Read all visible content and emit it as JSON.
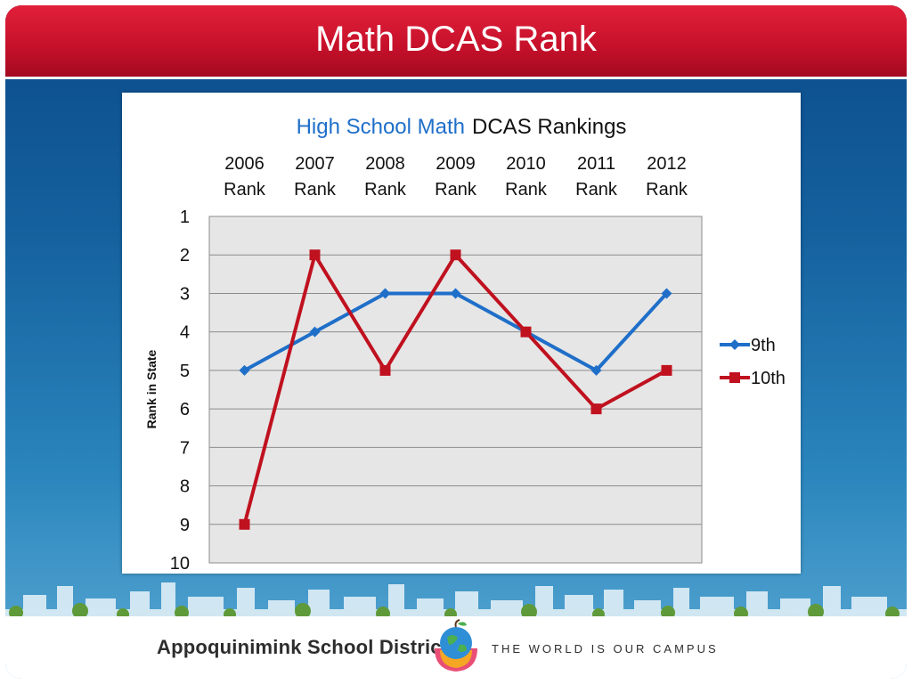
{
  "slide": {
    "title": "Math DCAS Rank",
    "footer_district": "Appoquinimink School District",
    "footer_tagline": "THE WORLD IS OUR CAMPUS"
  },
  "chart_data": {
    "type": "line",
    "title_parts": [
      "High School Math",
      "DCAS Rankings"
    ],
    "categories": [
      [
        "2006",
        "Rank"
      ],
      [
        "2007",
        "Rank"
      ],
      [
        "2008",
        "Rank"
      ],
      [
        "2009",
        "Rank"
      ],
      [
        "2010",
        "Rank"
      ],
      [
        "2011",
        "Rank"
      ],
      [
        "2012",
        "Rank"
      ]
    ],
    "series": [
      {
        "name": "9th",
        "values": [
          5,
          4,
          3,
          3,
          4,
          5,
          3
        ],
        "color": "#1f6fc9",
        "marker": "diamond"
      },
      {
        "name": "10th",
        "values": [
          9,
          2,
          5,
          2,
          4,
          6,
          5
        ],
        "color": "#c0111f",
        "marker": "square"
      }
    ],
    "ylabel": "Rank in State",
    "ylim": [
      1,
      10
    ],
    "yticks": [
      1,
      2,
      3,
      4,
      5,
      6,
      7,
      8,
      9,
      10
    ],
    "y_reversed": true,
    "x_axis_position": "top",
    "legend_position": "right",
    "grid": true,
    "title_color_first_part": "#1f6fc9",
    "plot_background": "#e6e6e6"
  }
}
